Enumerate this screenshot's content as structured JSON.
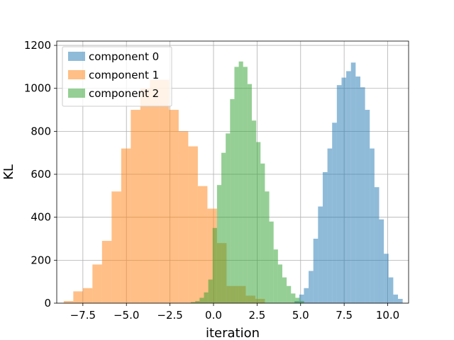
{
  "chart_data": {
    "type": "bar",
    "subtype": "overlapping-histogram",
    "title": "",
    "xlabel": "iteration",
    "ylabel": "KL",
    "xlim": [
      -9.0,
      11.2
    ],
    "ylim": [
      0,
      1220
    ],
    "xticks": [
      -7.5,
      -5.0,
      -2.5,
      0.0,
      2.5,
      5.0,
      7.5,
      10.0
    ],
    "xtick_labels": [
      "−7.5",
      "−5.0",
      "−2.5",
      "0.0",
      "2.5",
      "5.0",
      "7.5",
      "10.0"
    ],
    "yticks": [
      0,
      200,
      400,
      600,
      800,
      1000,
      1200
    ],
    "ytick_labels": [
      "0",
      "200",
      "400",
      "600",
      "800",
      "1000",
      "1200"
    ],
    "grid": true,
    "legend_position": "top-left",
    "series": [
      {
        "name": "component 0",
        "color": "#1f77b4",
        "alpha": 0.5,
        "bins": [
          [
            4.65,
            4.92,
            10
          ],
          [
            4.92,
            5.19,
            40
          ],
          [
            5.19,
            5.46,
            70
          ],
          [
            5.46,
            5.73,
            150
          ],
          [
            5.73,
            6.0,
            300
          ],
          [
            6.0,
            6.27,
            450
          ],
          [
            6.27,
            6.54,
            610
          ],
          [
            6.54,
            6.81,
            720
          ],
          [
            6.81,
            7.08,
            840
          ],
          [
            7.08,
            7.35,
            1015
          ],
          [
            7.35,
            7.62,
            1050
          ],
          [
            7.62,
            7.89,
            1080
          ],
          [
            7.89,
            8.16,
            1120
          ],
          [
            8.16,
            8.43,
            1055
          ],
          [
            8.43,
            8.7,
            1005
          ],
          [
            8.7,
            8.97,
            900
          ],
          [
            8.97,
            9.24,
            720
          ],
          [
            9.24,
            9.51,
            540
          ],
          [
            9.51,
            9.78,
            390
          ],
          [
            9.78,
            10.05,
            230
          ],
          [
            10.05,
            10.32,
            120
          ],
          [
            10.32,
            10.59,
            40
          ],
          [
            10.59,
            10.86,
            20
          ]
        ]
      },
      {
        "name": "component 1",
        "color": "#ff7f0e",
        "alpha": 0.5,
        "bins": [
          [
            -8.6,
            -8.05,
            10
          ],
          [
            -8.05,
            -7.5,
            55
          ],
          [
            -7.5,
            -6.95,
            70
          ],
          [
            -6.95,
            -6.4,
            180
          ],
          [
            -6.4,
            -5.85,
            290
          ],
          [
            -5.85,
            -5.3,
            520
          ],
          [
            -5.3,
            -4.75,
            720
          ],
          [
            -4.75,
            -4.2,
            900
          ],
          [
            -4.2,
            -3.65,
            1000
          ],
          [
            -3.65,
            -3.1,
            1040
          ],
          [
            -3.1,
            -2.55,
            1040
          ],
          [
            -2.55,
            -2.0,
            900
          ],
          [
            -2.0,
            -1.45,
            800
          ],
          [
            -1.45,
            -0.9,
            730
          ],
          [
            -0.9,
            -0.35,
            545
          ],
          [
            -0.35,
            0.2,
            440
          ],
          [
            0.2,
            0.75,
            280
          ],
          [
            0.75,
            1.3,
            80
          ],
          [
            1.3,
            1.85,
            80
          ],
          [
            1.85,
            2.4,
            35
          ],
          [
            2.4,
            2.95,
            20
          ]
        ]
      },
      {
        "name": "component 2",
        "color": "#2ca02c",
        "alpha": 0.5,
        "bins": [
          [
            -1.3,
            -1.05,
            5
          ],
          [
            -1.05,
            -0.8,
            10
          ],
          [
            -0.8,
            -0.55,
            25
          ],
          [
            -0.55,
            -0.3,
            50
          ],
          [
            -0.3,
            -0.05,
            110
          ],
          [
            -0.05,
            0.2,
            350
          ],
          [
            0.2,
            0.45,
            550
          ],
          [
            0.45,
            0.7,
            700
          ],
          [
            0.7,
            0.95,
            790
          ],
          [
            0.95,
            1.2,
            950
          ],
          [
            1.2,
            1.45,
            1100
          ],
          [
            1.45,
            1.7,
            1125
          ],
          [
            1.7,
            1.95,
            1100
          ],
          [
            1.95,
            2.2,
            1020
          ],
          [
            2.2,
            2.45,
            850
          ],
          [
            2.45,
            2.7,
            750
          ],
          [
            2.7,
            2.95,
            650
          ],
          [
            2.95,
            3.2,
            520
          ],
          [
            3.2,
            3.45,
            380
          ],
          [
            3.45,
            3.7,
            250
          ],
          [
            3.7,
            3.95,
            180
          ],
          [
            3.95,
            4.2,
            120
          ],
          [
            4.2,
            4.45,
            80
          ],
          [
            4.45,
            4.7,
            45
          ],
          [
            4.7,
            4.95,
            25
          ],
          [
            4.95,
            5.2,
            10
          ]
        ]
      }
    ]
  }
}
